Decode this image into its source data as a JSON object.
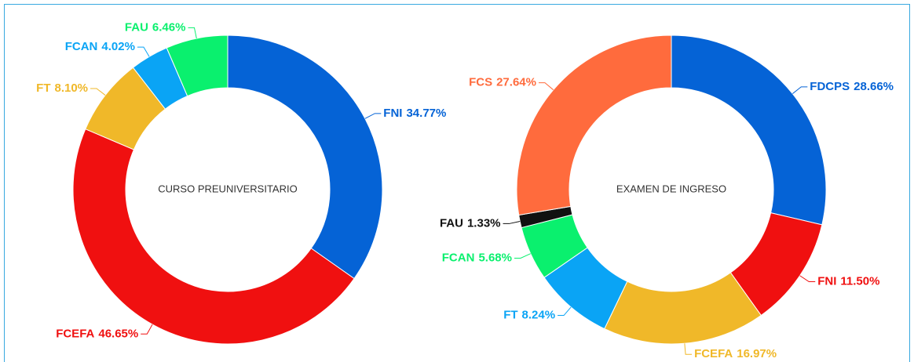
{
  "chart_data": [
    {
      "type": "pie",
      "title": "CURSO PREUNIVERSITARIO",
      "categories": [
        "FNI",
        "FCEFA",
        "FT",
        "FCAN",
        "FAU"
      ],
      "values": [
        34.77,
        46.65,
        8.1,
        4.02,
        6.46
      ],
      "value_labels": [
        "34.77%",
        "46.65%",
        "8.10%",
        "4.02%",
        "6.46%"
      ],
      "colors": [
        "#0563d6",
        "#f01010",
        "#f0b829",
        "#0aa4f5",
        "#0af06e"
      ]
    },
    {
      "type": "pie",
      "title": "EXAMEN DE INGRESO",
      "categories": [
        "FDCPS",
        "FNI",
        "FCEFA",
        "FT",
        "FCAN",
        "FAU",
        "FCS"
      ],
      "values": [
        28.66,
        11.5,
        16.97,
        8.24,
        5.68,
        1.33,
        27.64
      ],
      "value_labels": [
        "28.66%",
        "11.50%",
        "16.97%",
        "8.24%",
        "5.68%",
        "1.33%",
        "27.64%"
      ],
      "colors": [
        "#0563d6",
        "#f01010",
        "#f0b829",
        "#0aa4f5",
        "#0af06e",
        "#111111",
        "#ff6b3d"
      ]
    }
  ]
}
